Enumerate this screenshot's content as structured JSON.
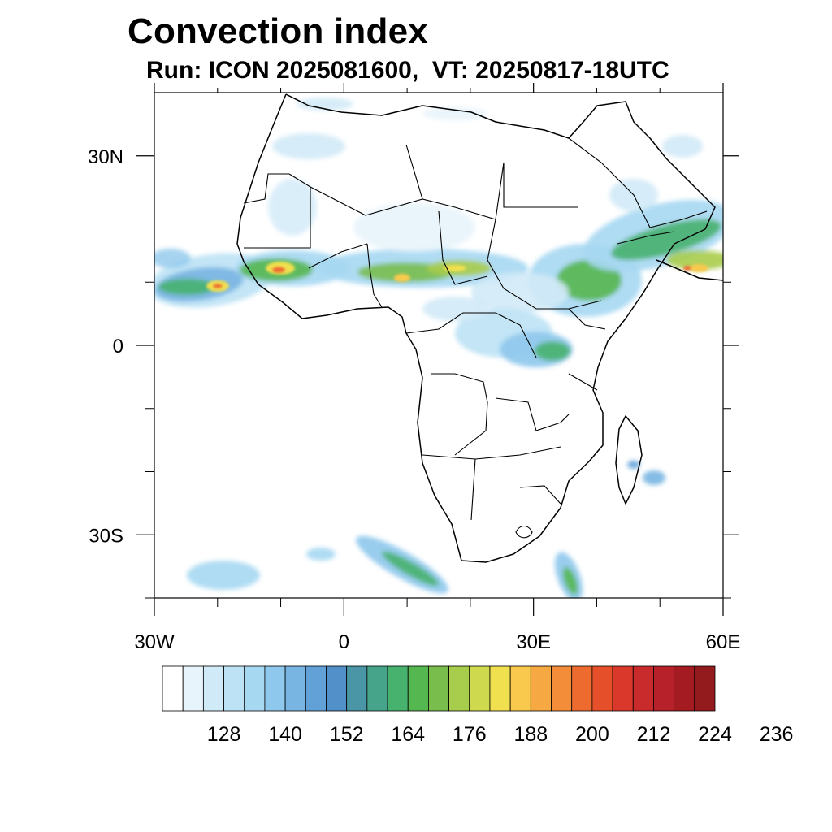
{
  "title": "Convection index",
  "subtitle": "Run: ICON 2025081600,  VT: 20250817-18UTC",
  "map": {
    "lon_range": [
      -30,
      60
    ],
    "lat_range": [
      -40,
      40
    ],
    "lon_ticks": [
      {
        "value": -30,
        "label": "30W"
      },
      {
        "value": 0,
        "label": "0"
      },
      {
        "value": 30,
        "label": "30E"
      },
      {
        "value": 60,
        "label": "60E"
      }
    ],
    "lat_ticks": [
      {
        "value": 30,
        "label": "30N"
      },
      {
        "value": 0,
        "label": "0"
      },
      {
        "value": -30,
        "label": "30S"
      }
    ],
    "minor_lon_ticks": [
      -20,
      -10,
      10,
      20,
      40,
      50
    ],
    "minor_lat_ticks": [
      20,
      10,
      -10,
      -20,
      -40
    ]
  },
  "colorbar": {
    "colors": [
      "#ffffff",
      "#e8f4fb",
      "#d1eaf7",
      "#bde2f5",
      "#a6d8f2",
      "#8ec8ec",
      "#78b5e2",
      "#62a1d8",
      "#5290c9",
      "#4a95a6",
      "#45a48a",
      "#47b16e",
      "#55b74f",
      "#79be4d",
      "#a8cc4b",
      "#cfd94d",
      "#f0e04f",
      "#f8c94d",
      "#f6a843",
      "#f48d3a",
      "#ee6b30",
      "#e5502a",
      "#d9382b",
      "#c92a2c",
      "#b72129",
      "#a51b22",
      "#931a1d"
    ],
    "labels": [
      "128",
      "140",
      "152",
      "164",
      "176",
      "188",
      "200",
      "212",
      "224",
      "236"
    ]
  }
}
